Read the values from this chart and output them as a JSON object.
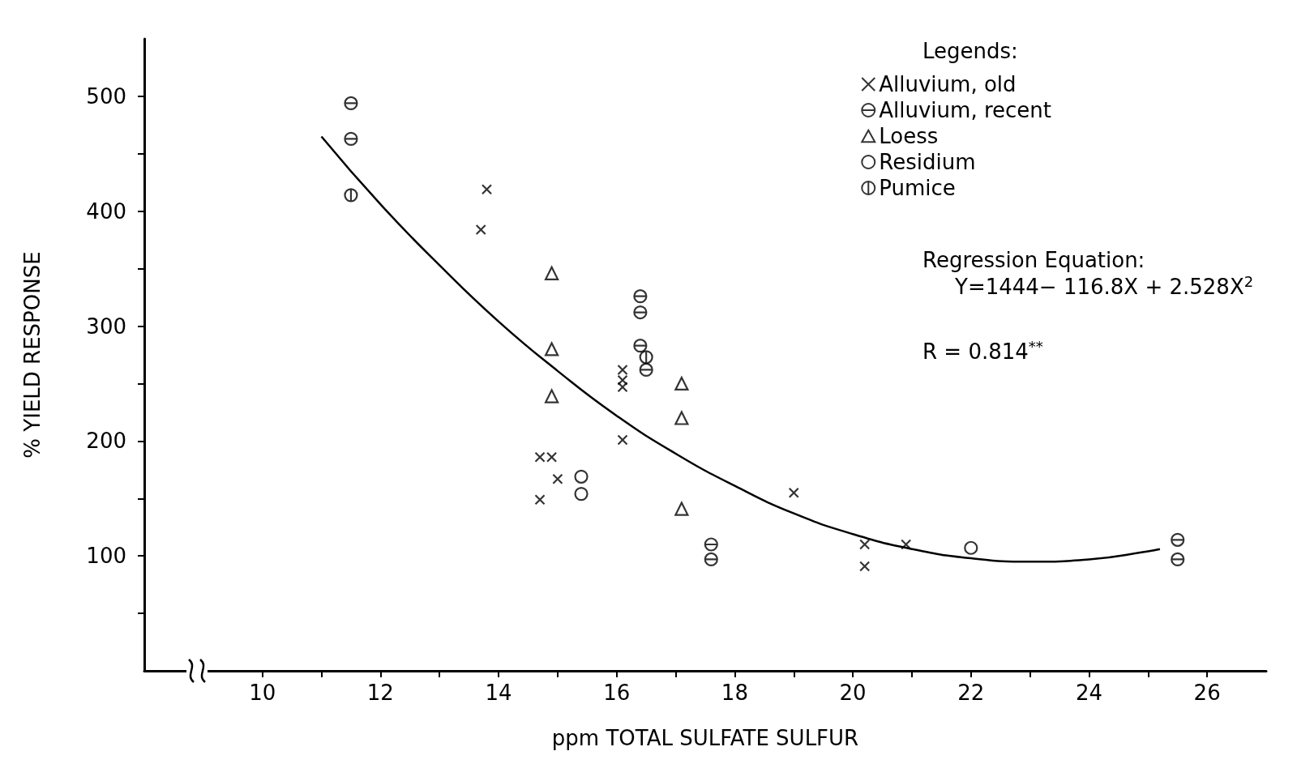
{
  "chart_data": {
    "type": "scatter",
    "xlabel": "ppm TOTAL SULFATE SULFUR",
    "ylabel": "% YIELD RESPONSE",
    "legend_title": "Legends:",
    "legend": "top right",
    "grid": false,
    "xlim": [
      8,
      27
    ],
    "xticks": [
      10,
      {
        "value": 11,
        "label": null
      },
      12,
      {
        "value": 13,
        "label": null
      },
      14,
      {
        "value": 15,
        "label": null
      },
      16,
      {
        "value": 17,
        "label": null
      },
      18,
      {
        "value": 19,
        "label": null
      },
      20,
      {
        "value": 21,
        "label": null
      },
      22,
      {
        "value": 23,
        "label": null
      },
      24,
      {
        "value": 25,
        "label": null
      },
      26
    ],
    "ylim": [
      0,
      550
    ],
    "yticks": [
      {
        "value": 50,
        "label": null
      },
      100,
      {
        "value": 150,
        "label": null
      },
      200,
      {
        "value": 250,
        "label": null
      },
      300,
      {
        "value": 350,
        "label": null
      },
      400,
      {
        "value": 450,
        "label": null
      },
      500
    ],
    "annotations": [
      "Regression Equation:",
      "Y=1444− 116.8X + 2.528X$^{2}$",
      "R = 0.814$^{**}$"
    ],
    "series": [
      {
        "name": "Alluvium, old",
        "color": "#000000",
        "marker": "cross",
        "x": [
          13.8,
          13.7,
          14.7,
          14.9,
          15.0,
          14.7,
          16.1,
          16.1,
          16.1,
          16.1,
          19.0,
          20.2,
          20.2,
          20.9
        ],
        "values": [
          419,
          384,
          186,
          186,
          167,
          149,
          262,
          253,
          247,
          201,
          155,
          110,
          91,
          110
        ]
      },
      {
        "name": "Alluvium, recent",
        "color": "#000000",
        "x": [
          11.5,
          11.5,
          16.4,
          16.4,
          16.4,
          16.5,
          17.6,
          17.6,
          25.5,
          25.5
        ],
        "values": [
          494,
          463,
          326,
          312,
          283,
          262,
          110,
          97,
          114,
          97
        ]
      },
      {
        "name": "Loess",
        "color": "#000000",
        "marker": "triangle",
        "x": [
          14.9,
          14.9,
          14.9,
          17.1,
          17.1,
          17.1
        ],
        "values": [
          346,
          280,
          239,
          250,
          220,
          141
        ]
      },
      {
        "name": "Residium",
        "color": "#000000",
        "marker": "circle",
        "x": [
          15.4,
          15.4,
          22.0
        ],
        "values": [
          169,
          154,
          107
        ]
      },
      {
        "name": "Pumice",
        "color": "#000000",
        "x": [
          11.5,
          16.5
        ],
        "values": [
          414,
          273
        ]
      },
      {
        "type": "line",
        "color": "#000000",
        "marker": "none",
        "line_style": "solid",
        "x": [
          11,
          12,
          13,
          14,
          15,
          16,
          17,
          18,
          19,
          20,
          21,
          22,
          23,
          24,
          25,
          25.2
        ],
        "values": [
          465,
          406,
          353,
          304,
          261,
          222,
          189,
          161,
          137,
          119,
          106,
          98,
          95,
          97,
          104,
          106
        ]
      }
    ]
  }
}
